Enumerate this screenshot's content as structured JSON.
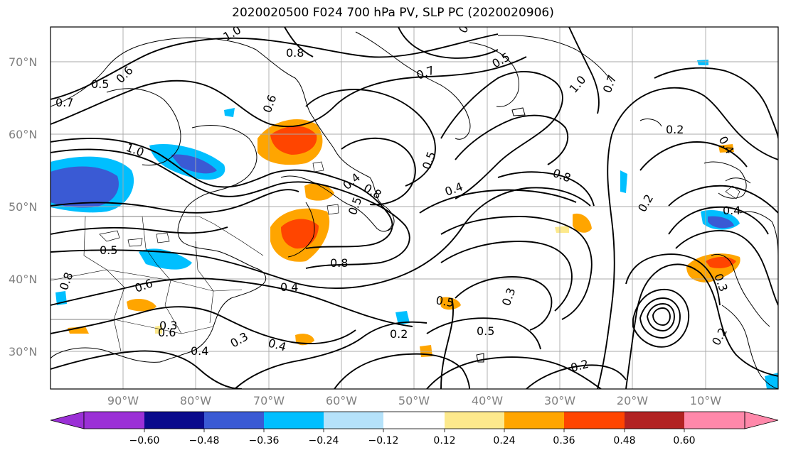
{
  "title": "2020020500 F024 700 hPa PV, SLP PC (2020020906)",
  "lat_labels": [
    "70°N",
    "60°N",
    "50°N",
    "40°N",
    "30°N"
  ],
  "lon_labels": [
    "90°W",
    "80°W",
    "70°W",
    "60°W",
    "50°W",
    "40°W",
    "30°W",
    "20°W",
    "10°W"
  ],
  "colorbar": {
    "ticks": [
      "−0.60",
      "−0.48",
      "−0.36",
      "−0.24",
      "−0.12",
      "0.12",
      "0.24",
      "0.36",
      "0.48",
      "0.60"
    ],
    "colors": [
      "#9b30d6",
      "#0a0a8c",
      "#3a5ad4",
      "#00bfff",
      "#b5e2fa",
      "#ffffff",
      "#fde98c",
      "#ffa500",
      "#ff4500",
      "#b22222",
      "#ff88aa"
    ]
  },
  "contour_labels": [
    "1.0",
    "0.8",
    "0.7",
    "0.6",
    "0.5",
    "0.4",
    "0.3",
    "0.2",
    "1.0",
    "0.8",
    "0.6",
    "0.5",
    "0.4",
    "0.2",
    "0.8",
    "0.5",
    "0.4",
    "0.3",
    "0.2",
    "0.4",
    "0.5",
    "0.6",
    "0.7",
    "1.0",
    "0.7",
    "0.8",
    "0.5",
    "0.6",
    "0.5",
    "0.4",
    "0.3",
    "0.2",
    "0.4",
    "0.8",
    "0.6",
    "0.5",
    "0.4",
    "0.3",
    "0.2"
  ]
}
